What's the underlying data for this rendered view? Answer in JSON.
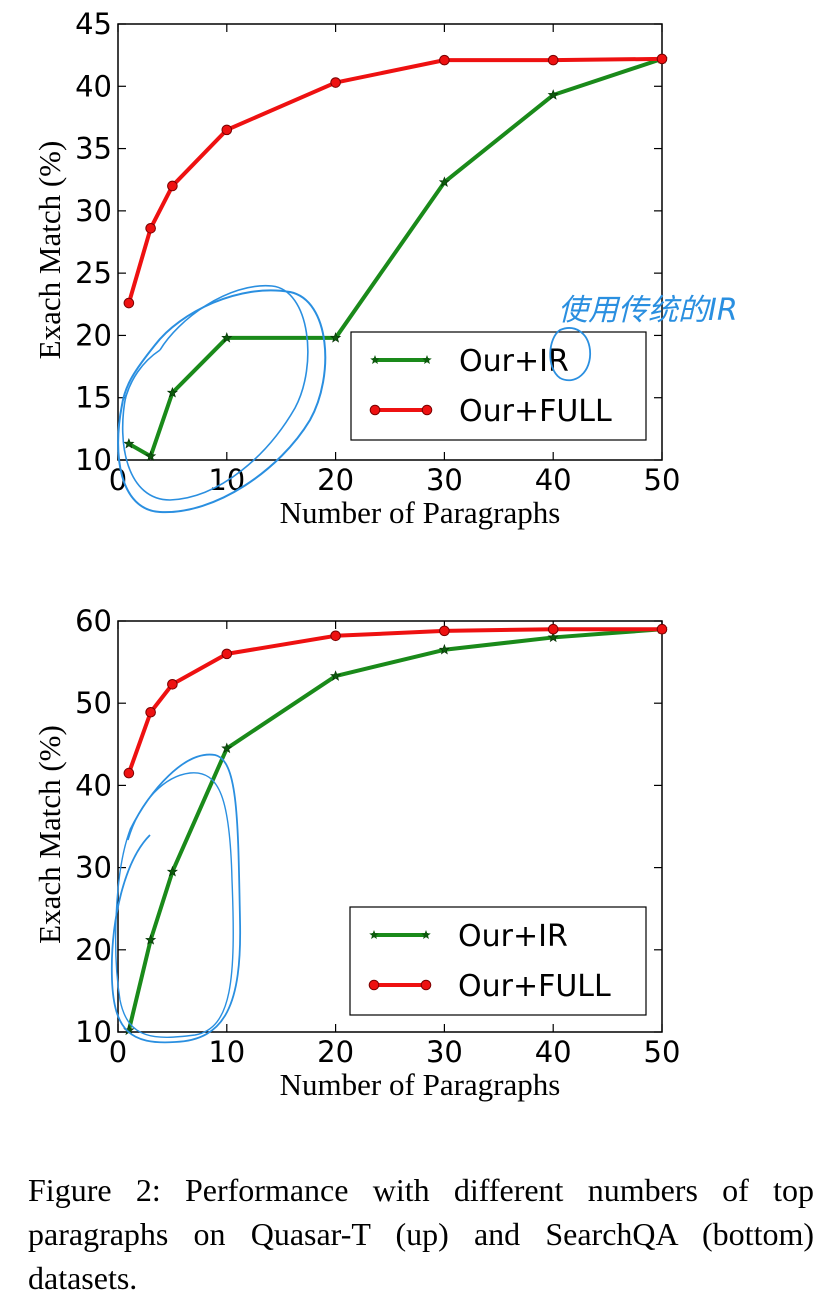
{
  "chart_data": [
    {
      "type": "line",
      "title": "",
      "xlabel": "Number of Paragraphs",
      "ylabel": "Exach Match (%)",
      "xlim": [
        0,
        50
      ],
      "ylim": [
        10,
        45
      ],
      "xticks": [
        0,
        10,
        20,
        30,
        40,
        50
      ],
      "yticks": [
        10,
        15,
        20,
        25,
        30,
        35,
        40,
        45
      ],
      "grid": false,
      "legend_position": "lower-right",
      "series": [
        {
          "name": "Our+IR",
          "color": "#1a8a1a",
          "marker": "star",
          "x": [
            1,
            3,
            5,
            10,
            20,
            30,
            40,
            50
          ],
          "y": [
            11.3,
            10.3,
            15.4,
            19.8,
            19.8,
            32.3,
            39.3,
            42.2
          ]
        },
        {
          "name": "Our+FULL",
          "color": "#ee1111",
          "marker": "circle",
          "x": [
            1,
            3,
            5,
            10,
            20,
            30,
            40,
            50
          ],
          "y": [
            22.6,
            28.6,
            32.0,
            36.5,
            40.3,
            42.1,
            42.1,
            42.2
          ]
        }
      ],
      "annotation": "使用传统的IR"
    },
    {
      "type": "line",
      "title": "",
      "xlabel": "Number of Paragraphs",
      "ylabel": "Exach Match (%)",
      "xlim": [
        0,
        50
      ],
      "ylim": [
        10,
        60
      ],
      "xticks": [
        0,
        10,
        20,
        30,
        40,
        50
      ],
      "yticks": [
        10,
        20,
        30,
        40,
        50,
        60
      ],
      "grid": false,
      "legend_position": "lower-right",
      "series": [
        {
          "name": "Our+IR",
          "color": "#1a8a1a",
          "marker": "star",
          "x": [
            1,
            3,
            5,
            10,
            20,
            30,
            40,
            50
          ],
          "y": [
            10.2,
            21.2,
            29.5,
            44.5,
            53.3,
            56.5,
            58.0,
            59.0
          ]
        },
        {
          "name": "Our+FULL",
          "color": "#ee1111",
          "marker": "circle",
          "x": [
            1,
            3,
            5,
            10,
            20,
            30,
            40,
            50
          ],
          "y": [
            41.5,
            48.9,
            52.3,
            56.0,
            58.2,
            58.8,
            59.0,
            59.0
          ]
        }
      ]
    }
  ],
  "caption": "Figure 2: Performance with different numbers of top paragraphs on Quasar-T (up) and SearchQA (bottom) datasets.",
  "annotation_color": "#2a8fe0"
}
